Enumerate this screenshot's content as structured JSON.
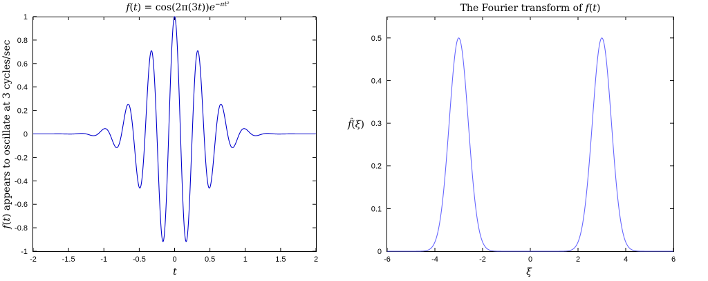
{
  "chart_data": [
    {
      "type": "line",
      "title": "f(t) = cos(2π(3t))e^{−πt²}",
      "title_parts": {
        "lhs": "f",
        "lhs_arg": "t",
        "eq": " = cos(2π(3",
        "eq_var": "t",
        "eq_close": "))",
        "base": "e",
        "exponent": "−πt²"
      },
      "xlabel": "t",
      "ylabel": "f(t) appears to oscillate at 3 cycles/sec",
      "ylabel_parts": {
        "func": "f",
        "arg": "t",
        "rest": " appears to oscillate at 3 cycles/sec"
      },
      "xlim": [
        -2,
        2
      ],
      "ylim": [
        -1,
        1
      ],
      "xticks": [
        "-2",
        "-1.5",
        "-1",
        "-0.5",
        "0",
        "0.5",
        "1",
        "1.5",
        "2"
      ],
      "yticks": [
        "-1",
        "-0.8",
        "-0.6",
        "-0.4",
        "-0.2",
        "0",
        "0.2",
        "0.4",
        "0.6",
        "0.8",
        "1"
      ],
      "grid": false,
      "color": "#0000cc",
      "series": [
        {
          "x": [
            -2.0,
            -1.5,
            -1.3333,
            -1.1667,
            -1.0,
            -0.8333,
            -0.6667,
            -0.5,
            -0.3333,
            -0.1667,
            0.0,
            0.1667,
            0.3333,
            0.5,
            0.6667,
            0.8333,
            1.0,
            1.1667,
            1.3333,
            1.5,
            2.0
          ],
          "y": [
            0.0,
            0.0,
            0.004,
            -0.014,
            0.043,
            -0.113,
            0.248,
            -0.456,
            0.705,
            -0.916,
            1.0,
            -0.916,
            0.705,
            -0.456,
            0.248,
            -0.113,
            0.043,
            -0.014,
            0.004,
            0.0,
            0.0
          ]
        }
      ]
    },
    {
      "type": "line",
      "title": "The Fourier transform of f(t)",
      "title_parts": {
        "text": "The Fourier transform of ",
        "func": "f",
        "arg": "t"
      },
      "xlabel": "ξ",
      "ylabel": "f̂(ξ)",
      "ylabel_parts": {
        "func": "f̂",
        "arg": "ξ"
      },
      "xlim": [
        -6,
        6
      ],
      "ylim": [
        0,
        0.55
      ],
      "xticks": [
        "-6",
        "-4",
        "-2",
        "0",
        "2",
        "4",
        "6"
      ],
      "yticks": [
        "0",
        "0.1",
        "0.2",
        "0.3",
        "0.4",
        "0.5"
      ],
      "grid": false,
      "color": "#6666ff",
      "series": [
        {
          "x": [
            -6.0,
            -4.5,
            -4.0,
            -3.5,
            -3.0,
            -2.5,
            -2.0,
            -1.5,
            0.0,
            1.5,
            2.0,
            2.5,
            3.0,
            3.5,
            4.0,
            4.5,
            6.0
          ],
          "y": [
            0.0,
            0.0045,
            0.0216,
            0.228,
            0.5,
            0.228,
            0.0216,
            0.0045,
            0.0,
            0.0045,
            0.0216,
            0.228,
            0.5,
            0.228,
            0.0216,
            0.0045,
            0.0
          ]
        }
      ]
    }
  ]
}
